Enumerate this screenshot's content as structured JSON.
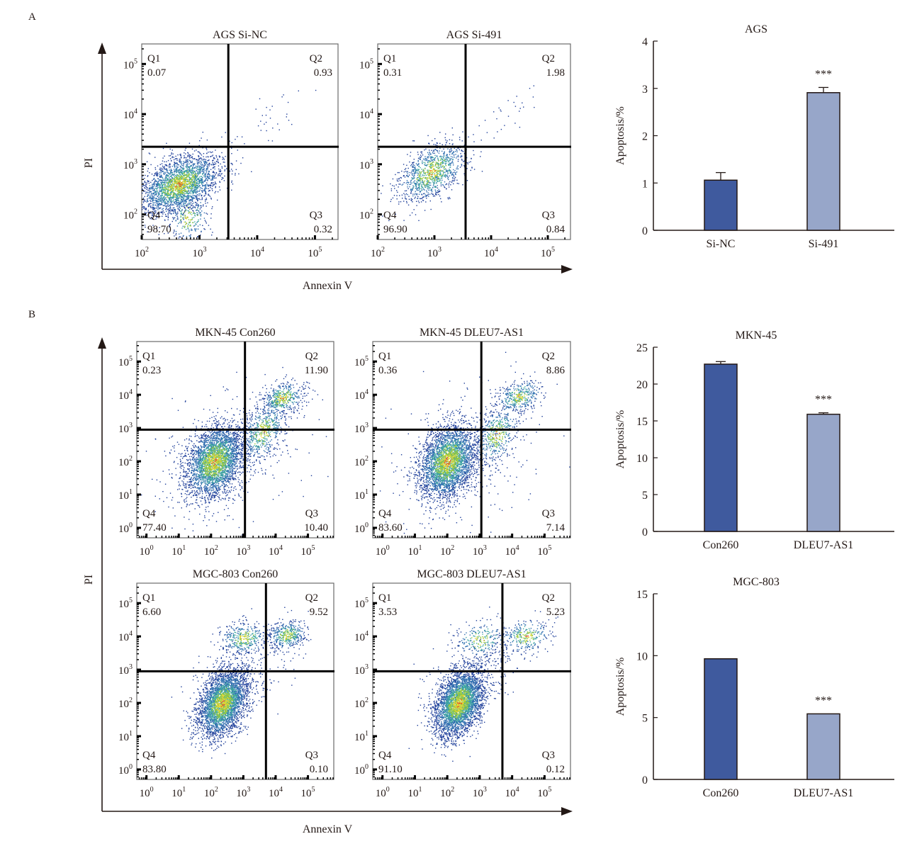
{
  "figure": {
    "panel_labels": [
      "A",
      "B"
    ],
    "panel_a": {
      "y_axis_label": "PI",
      "x_axis_label": "Annexin V"
    },
    "panel_b": {
      "y_axis_label": "PI",
      "x_axis_label": "Annexin V"
    }
  },
  "chart_data": [
    {
      "type": "scatter",
      "id": "ags-si-nc",
      "title": "AGS Si-NC",
      "xlabel": "Annexin V",
      "ylabel": "PI",
      "x_ticks": [
        "10^2",
        "10^3",
        "10^4",
        "10^5"
      ],
      "y_ticks": [
        "10^2",
        "10^3",
        "10^4",
        "10^5"
      ],
      "xlim_log10": [
        2,
        5.4
      ],
      "ylim_log10": [
        1.5,
        5.4
      ],
      "gate_log10": {
        "x": 3.5,
        "y": 3.35
      },
      "quadrants": {
        "Q1": "0.07",
        "Q2": "0.93",
        "Q3": "0.32",
        "Q4": "98.70"
      },
      "clusters": [
        {
          "cx": 2.65,
          "cy": 2.6,
          "sx": 0.35,
          "sy": 0.3,
          "n": 2600,
          "rho": 0.45
        },
        {
          "cx": 2.8,
          "cy": 1.95,
          "sx": 0.18,
          "sy": 0.25,
          "n": 250,
          "rho": 0.0
        }
      ],
      "sparse": [
        {
          "cx": 4.3,
          "cy": 4.0,
          "sx": 0.4,
          "sy": 0.4,
          "n": 35,
          "rho": 0.8
        }
      ]
    },
    {
      "type": "scatter",
      "id": "ags-si-491",
      "title": "AGS Si-491",
      "xlabel": "Annexin V",
      "ylabel": "PI",
      "x_ticks": [
        "10^2",
        "10^3",
        "10^4",
        "10^5"
      ],
      "y_ticks": [
        "10^2",
        "10^3",
        "10^4",
        "10^5"
      ],
      "xlim_log10": [
        2,
        5.4
      ],
      "ylim_log10": [
        1.5,
        5.4
      ],
      "gate_log10": {
        "x": 3.55,
        "y": 3.35
      },
      "quadrants": {
        "Q1": "0.31",
        "Q2": "1.98",
        "Q3": "0.84",
        "Q4": "96.90"
      },
      "clusters": [
        {
          "cx": 2.95,
          "cy": 2.85,
          "sx": 0.3,
          "sy": 0.3,
          "n": 1100,
          "rho": 0.5
        }
      ],
      "sparse": [
        {
          "cx": 4.3,
          "cy": 4.0,
          "sx": 0.45,
          "sy": 0.4,
          "n": 30,
          "rho": 0.8
        }
      ]
    },
    {
      "type": "scatter",
      "id": "mkn45-con260",
      "title": "MKN-45 Con260",
      "xlabel": "Annexin V",
      "ylabel": "PI",
      "x_ticks": [
        "10^0",
        "10^1",
        "10^2",
        "10^3",
        "10^4",
        "10^5"
      ],
      "y_ticks": [
        "10^0",
        "10^1",
        "10^2",
        "10^3",
        "10^4",
        "10^5"
      ],
      "xlim_log10": [
        -0.3,
        5.8
      ],
      "ylim_log10": [
        -0.3,
        5.6
      ],
      "gate_log10": {
        "x": 3.05,
        "y": 2.95
      },
      "quadrants": {
        "Q1": "0.23",
        "Q2": "11.90",
        "Q3": "10.40",
        "Q4": "77.40"
      },
      "clusters": [
        {
          "cx": 2.1,
          "cy": 2.0,
          "sx": 0.45,
          "sy": 0.55,
          "n": 3200,
          "rho": 0.3
        },
        {
          "cx": 4.2,
          "cy": 3.9,
          "sx": 0.35,
          "sy": 0.25,
          "n": 450,
          "rho": 0.3
        },
        {
          "cx": 3.6,
          "cy": 2.9,
          "sx": 0.35,
          "sy": 0.45,
          "n": 550,
          "rho": 0.4
        }
      ],
      "sparse": [
        {
          "cx": 2.5,
          "cy": 2.2,
          "sx": 1.2,
          "sy": 1.1,
          "n": 300,
          "rho": 0.3
        }
      ]
    },
    {
      "type": "scatter",
      "id": "mkn45-dleu7-as1",
      "title": "MKN-45 DLEU7-AS1",
      "xlabel": "Annexin V",
      "ylabel": "PI",
      "x_ticks": [
        "10^0",
        "10^1",
        "10^2",
        "10^3",
        "10^4",
        "10^5"
      ],
      "y_ticks": [
        "10^0",
        "10^1",
        "10^2",
        "10^3",
        "10^4",
        "10^5"
      ],
      "xlim_log10": [
        -0.3,
        5.8
      ],
      "ylim_log10": [
        -0.3,
        5.6
      ],
      "gate_log10": {
        "x": 3.05,
        "y": 2.95
      },
      "quadrants": {
        "Q1": "0.36",
        "Q2": "8.86",
        "Q3": "7.14",
        "Q4": "83.60"
      },
      "clusters": [
        {
          "cx": 2.0,
          "cy": 2.0,
          "sx": 0.45,
          "sy": 0.55,
          "n": 3300,
          "rho": 0.3
        },
        {
          "cx": 4.2,
          "cy": 3.95,
          "sx": 0.35,
          "sy": 0.25,
          "n": 380,
          "rho": 0.3
        },
        {
          "cx": 3.5,
          "cy": 2.8,
          "sx": 0.35,
          "sy": 0.45,
          "n": 450,
          "rho": 0.4
        }
      ],
      "sparse": [
        {
          "cx": 2.4,
          "cy": 2.1,
          "sx": 1.2,
          "sy": 1.1,
          "n": 300,
          "rho": 0.3
        }
      ]
    },
    {
      "type": "scatter",
      "id": "mgc803-con260",
      "title": "MGC-803 Con260",
      "xlabel": "Annexin V",
      "ylabel": "PI",
      "x_ticks": [
        "10^0",
        "10^1",
        "10^2",
        "10^3",
        "10^4",
        "10^5"
      ],
      "y_ticks": [
        "10^0",
        "10^1",
        "10^2",
        "10^3",
        "10^4",
        "10^5"
      ],
      "xlim_log10": [
        -0.3,
        5.8
      ],
      "ylim_log10": [
        -0.3,
        5.6
      ],
      "gate_log10": {
        "x": 3.7,
        "y": 2.95
      },
      "quadrants": {
        "Q1": "6.60",
        "Q2": "9.52",
        "Q3": "0.10",
        "Q4": "83.80"
      },
      "clusters": [
        {
          "cx": 2.35,
          "cy": 2.0,
          "sx": 0.38,
          "sy": 0.5,
          "n": 3300,
          "rho": 0.35
        },
        {
          "cx": 4.35,
          "cy": 4.05,
          "sx": 0.3,
          "sy": 0.22,
          "n": 420,
          "rho": 0.2
        },
        {
          "cx": 3.0,
          "cy": 3.95,
          "sx": 0.35,
          "sy": 0.25,
          "n": 380,
          "rho": 0.1
        }
      ],
      "sparse": [
        {
          "cx": 3.0,
          "cy": 3.0,
          "sx": 0.8,
          "sy": 0.6,
          "n": 250,
          "rho": 0.5
        }
      ]
    },
    {
      "type": "scatter",
      "id": "mgc803-dleu7-as1",
      "title": "MGC-803 DLEU7-AS1",
      "xlabel": "Annexin V",
      "ylabel": "PI",
      "x_ticks": [
        "10^0",
        "10^1",
        "10^2",
        "10^3",
        "10^4",
        "10^5"
      ],
      "y_ticks": [
        "10^0",
        "10^1",
        "10^2",
        "10^3",
        "10^4",
        "10^5"
      ],
      "xlim_log10": [
        -0.3,
        5.8
      ],
      "ylim_log10": [
        -0.3,
        5.6
      ],
      "gate_log10": {
        "x": 3.7,
        "y": 2.95
      },
      "quadrants": {
        "Q1": "3.53",
        "Q2": "5.23",
        "Q3": "0.12",
        "Q4": "91.10"
      },
      "clusters": [
        {
          "cx": 2.35,
          "cy": 2.0,
          "sx": 0.38,
          "sy": 0.5,
          "n": 3500,
          "rho": 0.35
        },
        {
          "cx": 4.4,
          "cy": 4.0,
          "sx": 0.4,
          "sy": 0.25,
          "n": 300,
          "rho": 0.2
        },
        {
          "cx": 3.0,
          "cy": 3.9,
          "sx": 0.4,
          "sy": 0.28,
          "n": 250,
          "rho": 0.1
        }
      ],
      "sparse": [
        {
          "cx": 3.0,
          "cy": 3.0,
          "sx": 0.8,
          "sy": 0.6,
          "n": 200,
          "rho": 0.5
        }
      ]
    },
    {
      "type": "bar",
      "id": "ags-bar",
      "title": "AGS",
      "ylabel": "Apoptosis/%",
      "xlabel": "",
      "categories": [
        "Si-NC",
        "Si-491"
      ],
      "values": [
        1.06,
        2.91
      ],
      "errors": [
        0.16,
        0.11
      ],
      "significance": [
        "",
        "***"
      ],
      "ylim": [
        0,
        4
      ],
      "yticks": [
        0,
        1,
        2,
        3,
        4
      ],
      "colors": [
        "#3f5a9e",
        "#97a6c9"
      ]
    },
    {
      "type": "bar",
      "id": "mkn45-bar",
      "title": "MKN-45",
      "ylabel": "Apoptosis/%",
      "xlabel": "",
      "categories": [
        "Con260",
        "DLEU7-AS1"
      ],
      "values": [
        22.7,
        15.9
      ],
      "errors": [
        0.35,
        0.2
      ],
      "significance": [
        "",
        "***"
      ],
      "ylim": [
        0,
        25
      ],
      "yticks": [
        0,
        5,
        10,
        15,
        20,
        25
      ],
      "colors": [
        "#3f5a9e",
        "#97a6c9"
      ]
    },
    {
      "type": "bar",
      "id": "mgc803-bar",
      "title": "MGC-803",
      "ylabel": "Apoptosis/%",
      "xlabel": "",
      "categories": [
        "Con260",
        "DLEU7-AS1"
      ],
      "values": [
        9.75,
        5.3
      ],
      "errors": [
        0,
        0
      ],
      "significance": [
        "",
        "***"
      ],
      "ylim": [
        0,
        15
      ],
      "yticks": [
        0,
        5,
        10,
        15
      ],
      "colors": [
        "#3f5a9e",
        "#97a6c9"
      ]
    }
  ]
}
